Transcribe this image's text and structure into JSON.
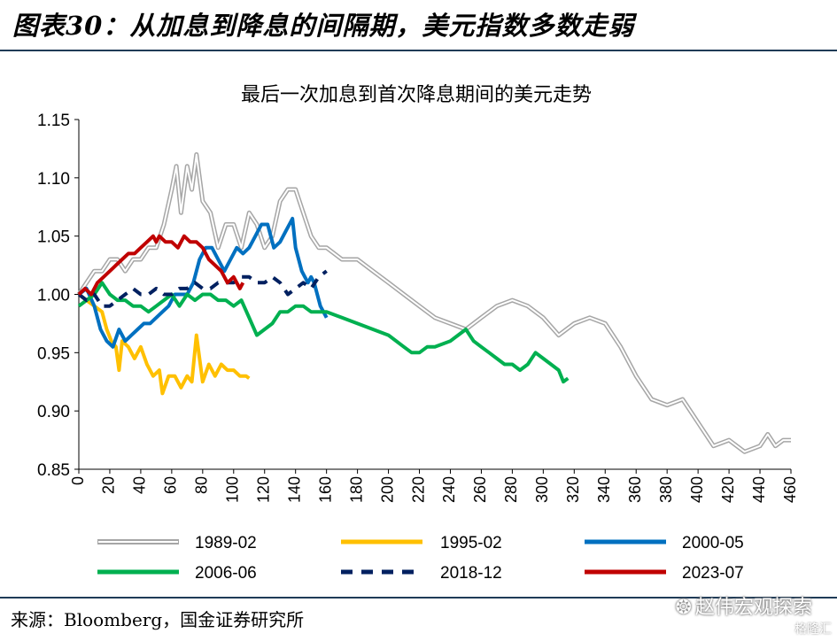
{
  "figure": {
    "title": "图表30：从加息到降息的间隔期，美元指数多数走弱",
    "source": "来源：Bloomberg，国金证券研究所",
    "watermark": "赵伟宏观探索",
    "watermark2": "格隆汇"
  },
  "chart_data": {
    "type": "line",
    "title": "最后一次加息到首次降息期间的美元走势",
    "xlabel": "",
    "ylabel": "",
    "xlim": [
      0,
      460
    ],
    "ylim": [
      0.85,
      1.15
    ],
    "x_ticks": [
      "0",
      "20",
      "40",
      "60",
      "80",
      "100",
      "120",
      "140",
      "160",
      "180",
      "200",
      "220",
      "240",
      "260",
      "280",
      "300",
      "320",
      "340",
      "360",
      "380",
      "400",
      "420",
      "440",
      "460"
    ],
    "y_ticks": [
      "0.85",
      "0.90",
      "0.95",
      "1.00",
      "1.05",
      "1.10",
      "1.15"
    ],
    "grid": false,
    "legend_position": "bottom",
    "series": [
      {
        "name": "1989-02",
        "color": "#a6a6a6",
        "style": "double",
        "x": [
          0,
          5,
          10,
          15,
          20,
          25,
          30,
          35,
          40,
          45,
          50,
          55,
          60,
          63,
          66,
          70,
          73,
          76,
          80,
          85,
          90,
          95,
          100,
          105,
          110,
          115,
          120,
          125,
          130,
          135,
          140,
          145,
          150,
          155,
          160,
          170,
          180,
          190,
          200,
          210,
          220,
          230,
          240,
          250,
          260,
          270,
          280,
          290,
          300,
          310,
          320,
          330,
          340,
          350,
          360,
          370,
          380,
          390,
          400,
          410,
          420,
          430,
          440,
          445,
          450,
          455,
          460
        ],
        "y": [
          1.0,
          1.01,
          1.02,
          1.02,
          1.03,
          1.03,
          1.02,
          1.03,
          1.03,
          1.04,
          1.04,
          1.06,
          1.09,
          1.11,
          1.07,
          1.11,
          1.09,
          1.12,
          1.08,
          1.07,
          1.04,
          1.06,
          1.06,
          1.04,
          1.07,
          1.06,
          1.04,
          1.05,
          1.08,
          1.09,
          1.09,
          1.07,
          1.05,
          1.04,
          1.04,
          1.03,
          1.03,
          1.02,
          1.01,
          1.0,
          0.99,
          0.98,
          0.975,
          0.97,
          0.98,
          0.99,
          0.995,
          0.99,
          0.98,
          0.965,
          0.975,
          0.98,
          0.975,
          0.955,
          0.93,
          0.91,
          0.905,
          0.91,
          0.89,
          0.87,
          0.875,
          0.865,
          0.87,
          0.88,
          0.87,
          0.875,
          0.875
        ]
      },
      {
        "name": "1995-02",
        "color": "#ffc000",
        "style": "solid",
        "x": [
          0,
          5,
          10,
          15,
          18,
          21,
          24,
          26,
          28,
          32,
          36,
          40,
          44,
          48,
          52,
          54,
          58,
          62,
          66,
          70,
          73,
          76,
          78,
          80,
          84,
          88,
          92,
          96,
          100,
          104,
          108,
          110
        ],
        "y": [
          1.0,
          0.995,
          0.99,
          0.985,
          0.97,
          0.96,
          0.955,
          0.935,
          0.96,
          0.955,
          0.945,
          0.955,
          0.94,
          0.93,
          0.935,
          0.915,
          0.93,
          0.93,
          0.92,
          0.93,
          0.925,
          0.965,
          0.945,
          0.925,
          0.94,
          0.93,
          0.94,
          0.935,
          0.935,
          0.93,
          0.93,
          0.928
        ]
      },
      {
        "name": "2000-05",
        "color": "#0070c0",
        "style": "solid",
        "x": [
          0,
          5,
          10,
          14,
          18,
          22,
          26,
          30,
          34,
          38,
          42,
          46,
          50,
          54,
          58,
          62,
          66,
          70,
          74,
          78,
          82,
          86,
          90,
          94,
          98,
          102,
          106,
          110,
          114,
          118,
          122,
          126,
          130,
          134,
          136,
          138,
          140,
          142,
          144,
          146,
          148,
          150,
          152,
          154,
          156,
          158,
          160
        ],
        "y": [
          1.0,
          1.005,
          0.99,
          0.97,
          0.96,
          0.955,
          0.97,
          0.96,
          0.965,
          0.97,
          0.975,
          0.975,
          0.98,
          0.985,
          0.99,
          1.0,
          1.0,
          1.0,
          1.01,
          1.03,
          1.04,
          1.04,
          1.03,
          1.02,
          1.03,
          1.04,
          1.035,
          1.04,
          1.05,
          1.06,
          1.06,
          1.04,
          1.045,
          1.055,
          1.06,
          1.065,
          1.04,
          1.03,
          1.02,
          1.015,
          1.01,
          1.015,
          1.01,
          1.0,
          0.99,
          0.985,
          0.98
        ]
      },
      {
        "name": "2006-06",
        "color": "#00b050",
        "style": "solid",
        "x": [
          0,
          5,
          10,
          15,
          20,
          25,
          30,
          35,
          40,
          45,
          50,
          55,
          60,
          65,
          70,
          75,
          80,
          85,
          90,
          95,
          100,
          105,
          110,
          115,
          120,
          125,
          130,
          135,
          140,
          145,
          150,
          155,
          160,
          170,
          180,
          190,
          200,
          210,
          215,
          220,
          225,
          230,
          240,
          245,
          250,
          255,
          260,
          265,
          270,
          275,
          280,
          285,
          290,
          295,
          300,
          305,
          310,
          313,
          316
        ],
        "y": [
          0.99,
          0.995,
          1.0,
          1.01,
          1.0,
          0.995,
          0.995,
          0.99,
          0.99,
          0.985,
          0.99,
          0.995,
          1.0,
          0.99,
          1.0,
          0.995,
          1.0,
          1.0,
          0.995,
          0.995,
          0.99,
          0.995,
          0.98,
          0.965,
          0.97,
          0.975,
          0.985,
          0.985,
          0.99,
          0.99,
          0.985,
          0.985,
          0.985,
          0.98,
          0.975,
          0.97,
          0.965,
          0.955,
          0.95,
          0.95,
          0.955,
          0.955,
          0.96,
          0.965,
          0.97,
          0.96,
          0.955,
          0.95,
          0.945,
          0.94,
          0.94,
          0.935,
          0.94,
          0.95,
          0.945,
          0.94,
          0.935,
          0.925,
          0.928
        ]
      },
      {
        "name": "2018-12",
        "color": "#002060",
        "style": "dashed",
        "x": [
          0,
          5,
          10,
          15,
          20,
          25,
          30,
          35,
          40,
          45,
          50,
          55,
          60,
          65,
          70,
          75,
          80,
          85,
          90,
          95,
          100,
          105,
          110,
          115,
          120,
          125,
          130,
          135,
          140,
          145,
          150,
          155,
          160
        ],
        "y": [
          1.0,
          0.995,
          1.0,
          0.99,
          0.99,
          0.995,
          1.0,
          1.005,
          1.0,
          1.0,
          1.005,
          1.0,
          1.0,
          1.005,
          1.005,
          1.01,
          1.005,
          1.005,
          1.01,
          1.01,
          1.01,
          1.015,
          1.015,
          1.01,
          1.01,
          1.015,
          1.01,
          1.0,
          1.005,
          1.01,
          1.005,
          1.015,
          1.02
        ]
      },
      {
        "name": "2023-07",
        "color": "#c00000",
        "style": "solid",
        "x": [
          0,
          4,
          8,
          12,
          16,
          20,
          24,
          28,
          32,
          36,
          40,
          44,
          48,
          50,
          52,
          56,
          60,
          64,
          68,
          72,
          76,
          80,
          84,
          88,
          92,
          96,
          100,
          104,
          106
        ],
        "y": [
          1.0,
          1.005,
          1.0,
          1.01,
          1.015,
          1.02,
          1.025,
          1.03,
          1.035,
          1.035,
          1.04,
          1.045,
          1.05,
          1.045,
          1.05,
          1.045,
          1.045,
          1.04,
          1.05,
          1.045,
          1.045,
          1.04,
          1.03,
          1.025,
          1.02,
          1.01,
          1.015,
          1.005,
          1.01
        ]
      }
    ]
  }
}
